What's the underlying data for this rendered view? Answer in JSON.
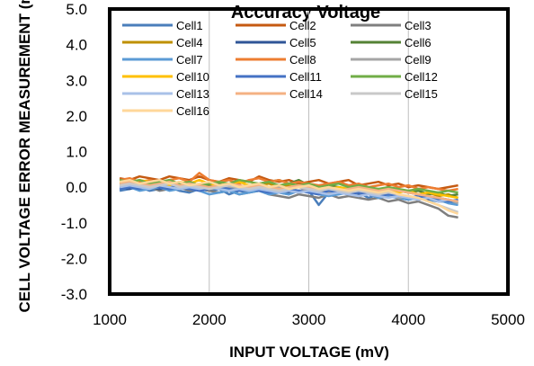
{
  "chart_data": {
    "type": "line",
    "title": "Accuracy Voltage",
    "xlabel": "INPUT VOLTAGE (mV)",
    "ylabel": "CELL VOLTAGE ERROR MEASUREMENT (mV)",
    "xlim": [
      1000,
      5000
    ],
    "ylim": [
      -3.0,
      5.0
    ],
    "xticks": [
      "1000",
      "2000",
      "3000",
      "4000",
      "5000"
    ],
    "yticks": [
      "5.0",
      "4.0",
      "3.0",
      "2.0",
      "1.0",
      "0.0",
      "-1.0",
      "-2.0",
      "-3.0"
    ],
    "grid": "vertical",
    "legend_position": "top",
    "x": [
      1100,
      1200,
      1300,
      1400,
      1500,
      1600,
      1700,
      1800,
      1900,
      2000,
      2100,
      2200,
      2300,
      2400,
      2500,
      2600,
      2700,
      2800,
      2900,
      3000,
      3100,
      3200,
      3300,
      3400,
      3500,
      3600,
      3700,
      3800,
      3900,
      4000,
      4100,
      4200,
      4300,
      4400,
      4500
    ],
    "series": [
      {
        "name": "Cell1",
        "color": "#4A7EBB",
        "values": [
          -0.1,
          -0.05,
          0.0,
          -0.1,
          -0.05,
          0.0,
          -0.1,
          -0.15,
          -0.05,
          -0.1,
          -0.05,
          -0.2,
          -0.1,
          -0.15,
          -0.05,
          -0.1,
          -0.15,
          -0.2,
          -0.1,
          -0.1,
          -0.5,
          -0.15,
          -0.1,
          -0.2,
          -0.15,
          -0.3,
          -0.2,
          -0.25,
          -0.3,
          -0.35,
          -0.3,
          -0.35,
          -0.4,
          -0.4,
          -0.45
        ]
      },
      {
        "name": "Cell2",
        "color": "#C55A11",
        "values": [
          0.25,
          0.2,
          0.3,
          0.25,
          0.2,
          0.3,
          0.25,
          0.2,
          0.3,
          0.2,
          0.15,
          0.25,
          0.2,
          0.15,
          0.3,
          0.2,
          0.15,
          0.2,
          0.1,
          0.15,
          0.2,
          0.1,
          0.15,
          0.2,
          0.05,
          0.1,
          0.15,
          0.05,
          0.1,
          0.0,
          0.05,
          0.0,
          -0.05,
          0.0,
          0.05
        ]
      },
      {
        "name": "Cell3",
        "color": "#7F7F7F",
        "values": [
          0.0,
          0.05,
          -0.05,
          0.0,
          -0.1,
          -0.05,
          0.0,
          -0.1,
          -0.05,
          -0.1,
          -0.15,
          -0.1,
          -0.2,
          -0.15,
          -0.1,
          -0.2,
          -0.25,
          -0.3,
          -0.2,
          -0.25,
          -0.3,
          -0.2,
          -0.3,
          -0.25,
          -0.3,
          -0.35,
          -0.3,
          -0.4,
          -0.35,
          -0.45,
          -0.4,
          -0.5,
          -0.6,
          -0.8,
          -0.85
        ]
      },
      {
        "name": "Cell4",
        "color": "#BF9000",
        "values": [
          0.1,
          0.15,
          0.05,
          0.1,
          0.15,
          0.05,
          0.1,
          0.15,
          0.05,
          0.1,
          0.05,
          0.1,
          0.05,
          0.0,
          0.05,
          0.1,
          0.0,
          0.05,
          0.0,
          -0.05,
          0.0,
          -0.05,
          0.0,
          -0.1,
          -0.05,
          -0.1,
          -0.05,
          -0.15,
          -0.1,
          -0.15,
          -0.2,
          -0.15,
          -0.25,
          -0.2,
          -0.3
        ]
      },
      {
        "name": "Cell5",
        "color": "#2F5597",
        "values": [
          0.0,
          -0.05,
          0.05,
          0.0,
          -0.05,
          0.0,
          0.05,
          -0.05,
          0.0,
          -0.05,
          0.0,
          -0.1,
          -0.05,
          0.0,
          -0.1,
          -0.05,
          -0.1,
          -0.15,
          -0.1,
          -0.05,
          -0.1,
          -0.15,
          -0.1,
          -0.15,
          -0.2,
          -0.15,
          -0.2,
          -0.25,
          -0.2,
          -0.3,
          -0.25,
          -0.35,
          -0.3,
          -0.35,
          -0.4
        ]
      },
      {
        "name": "Cell6",
        "color": "#548235",
        "values": [
          0.1,
          0.05,
          0.1,
          0.15,
          0.05,
          0.1,
          0.05,
          0.1,
          0.0,
          0.05,
          0.1,
          0.05,
          0.0,
          0.05,
          0.1,
          0.15,
          0.2,
          0.1,
          0.2,
          0.05,
          0.0,
          0.05,
          0.0,
          -0.05,
          0.0,
          -0.05,
          -0.1,
          -0.05,
          -0.1,
          -0.15,
          -0.1,
          -0.2,
          -0.15,
          -0.25,
          -0.2
        ]
      },
      {
        "name": "Cell7",
        "color": "#5B9BD5",
        "values": [
          -0.05,
          0.0,
          -0.1,
          -0.05,
          0.0,
          -0.1,
          -0.05,
          0.0,
          -0.1,
          -0.2,
          -0.15,
          -0.1,
          -0.2,
          -0.15,
          -0.1,
          -0.2,
          -0.15,
          -0.2,
          -0.1,
          -0.15,
          -0.2,
          -0.25,
          -0.2,
          -0.15,
          -0.25,
          -0.2,
          -0.3,
          -0.25,
          -0.3,
          -0.35,
          -0.3,
          -0.4,
          -0.35,
          -0.45,
          -0.5
        ]
      },
      {
        "name": "Cell8",
        "color": "#ED7D31",
        "values": [
          0.2,
          0.25,
          0.15,
          0.2,
          0.1,
          0.2,
          0.25,
          0.15,
          0.4,
          0.2,
          0.15,
          0.2,
          0.1,
          0.2,
          0.25,
          0.15,
          0.2,
          0.1,
          0.15,
          0.1,
          0.05,
          0.1,
          0.15,
          0.05,
          0.1,
          0.0,
          0.05,
          0.1,
          0.0,
          0.05,
          -0.05,
          0.0,
          -0.05,
          -0.1,
          -0.05
        ]
      },
      {
        "name": "Cell9",
        "color": "#A5A5A5",
        "values": [
          0.05,
          0.0,
          0.1,
          0.05,
          0.0,
          0.05,
          0.1,
          0.0,
          -0.05,
          0.0,
          0.05,
          0.0,
          -0.05,
          0.0,
          -0.1,
          -0.05,
          0.0,
          -0.05,
          -0.1,
          -0.05,
          -0.1,
          -0.15,
          -0.1,
          -0.2,
          -0.15,
          -0.2,
          -0.25,
          -0.2,
          -0.3,
          -0.25,
          -0.35,
          -0.3,
          -0.4,
          -0.35,
          -0.45
        ]
      },
      {
        "name": "Cell10",
        "color": "#FFC000",
        "values": [
          0.15,
          0.1,
          0.2,
          0.15,
          0.1,
          0.05,
          0.15,
          0.1,
          0.2,
          0.1,
          0.05,
          0.1,
          0.15,
          0.05,
          0.1,
          0.0,
          0.05,
          0.1,
          0.0,
          0.05,
          0.0,
          -0.05,
          0.0,
          -0.05,
          0.0,
          -0.1,
          -0.05,
          -0.1,
          -0.15,
          -0.1,
          -0.2,
          -0.15,
          -0.2,
          -0.25,
          -0.3
        ]
      },
      {
        "name": "Cell11",
        "color": "#4472C4",
        "values": [
          -0.05,
          0.0,
          -0.05,
          0.05,
          0.0,
          -0.05,
          0.0,
          -0.05,
          -0.1,
          -0.05,
          0.0,
          -0.05,
          -0.1,
          -0.05,
          -0.1,
          -0.15,
          -0.1,
          -0.05,
          -0.1,
          -0.15,
          -0.2,
          -0.1,
          -0.15,
          -0.2,
          -0.15,
          -0.2,
          -0.25,
          -0.2,
          -0.25,
          -0.3,
          -0.25,
          -0.3,
          -0.35,
          -0.4,
          -0.35
        ]
      },
      {
        "name": "Cell12",
        "color": "#70AD47",
        "values": [
          0.2,
          0.15,
          0.2,
          0.1,
          0.15,
          0.2,
          0.1,
          0.15,
          0.05,
          0.1,
          0.15,
          0.1,
          0.2,
          0.15,
          0.1,
          0.15,
          0.05,
          0.1,
          0.05,
          0.1,
          0.0,
          0.05,
          0.1,
          0.0,
          0.05,
          0.0,
          -0.05,
          0.0,
          -0.05,
          -0.1,
          -0.05,
          -0.1,
          -0.15,
          -0.1,
          -0.15
        ]
      },
      {
        "name": "Cell13",
        "color": "#A9C1E8",
        "values": [
          0.0,
          0.05,
          0.0,
          -0.05,
          0.05,
          0.0,
          -0.05,
          0.0,
          -0.05,
          0.0,
          -0.05,
          -0.1,
          -0.05,
          -0.1,
          -0.05,
          -0.1,
          -0.15,
          -0.1,
          -0.15,
          -0.1,
          -0.15,
          -0.2,
          -0.15,
          -0.2,
          -0.25,
          -0.2,
          -0.25,
          -0.3,
          -0.25,
          -0.3,
          -0.35,
          -0.3,
          -0.4,
          -0.35,
          -0.4
        ]
      },
      {
        "name": "Cell14",
        "color": "#F4B183",
        "values": [
          0.1,
          0.15,
          0.1,
          0.05,
          0.1,
          0.15,
          0.05,
          0.1,
          0.05,
          0.0,
          0.05,
          0.1,
          0.05,
          0.0,
          0.05,
          0.0,
          -0.05,
          0.0,
          0.05,
          0.0,
          -0.05,
          0.0,
          -0.1,
          -0.05,
          0.0,
          -0.05,
          -0.1,
          -0.05,
          -0.1,
          -0.15,
          -0.2,
          -0.25,
          -0.3,
          -0.35,
          -0.4
        ]
      },
      {
        "name": "Cell15",
        "color": "#C9C9C9",
        "values": [
          0.05,
          0.1,
          0.05,
          0.0,
          0.05,
          0.1,
          0.0,
          0.05,
          0.0,
          -0.05,
          0.0,
          0.05,
          0.0,
          -0.05,
          0.0,
          -0.05,
          -0.1,
          -0.05,
          0.0,
          -0.05,
          -0.1,
          -0.05,
          -0.1,
          -0.15,
          -0.1,
          -0.15,
          -0.2,
          -0.15,
          -0.2,
          -0.25,
          -0.3,
          -0.4,
          -0.5,
          -0.6,
          -0.7
        ]
      },
      {
        "name": "Cell16",
        "color": "#FFD79A",
        "values": [
          0.15,
          0.2,
          0.1,
          0.15,
          0.2,
          0.1,
          0.15,
          0.05,
          0.1,
          0.15,
          0.05,
          0.1,
          0.0,
          0.05,
          0.1,
          0.0,
          0.05,
          -0.05,
          0.0,
          0.05,
          -0.05,
          0.0,
          -0.05,
          -0.1,
          -0.05,
          -0.1,
          -0.15,
          -0.1,
          -0.2,
          -0.25,
          -0.3,
          -0.4,
          -0.5,
          -0.65,
          -0.75
        ]
      }
    ]
  }
}
